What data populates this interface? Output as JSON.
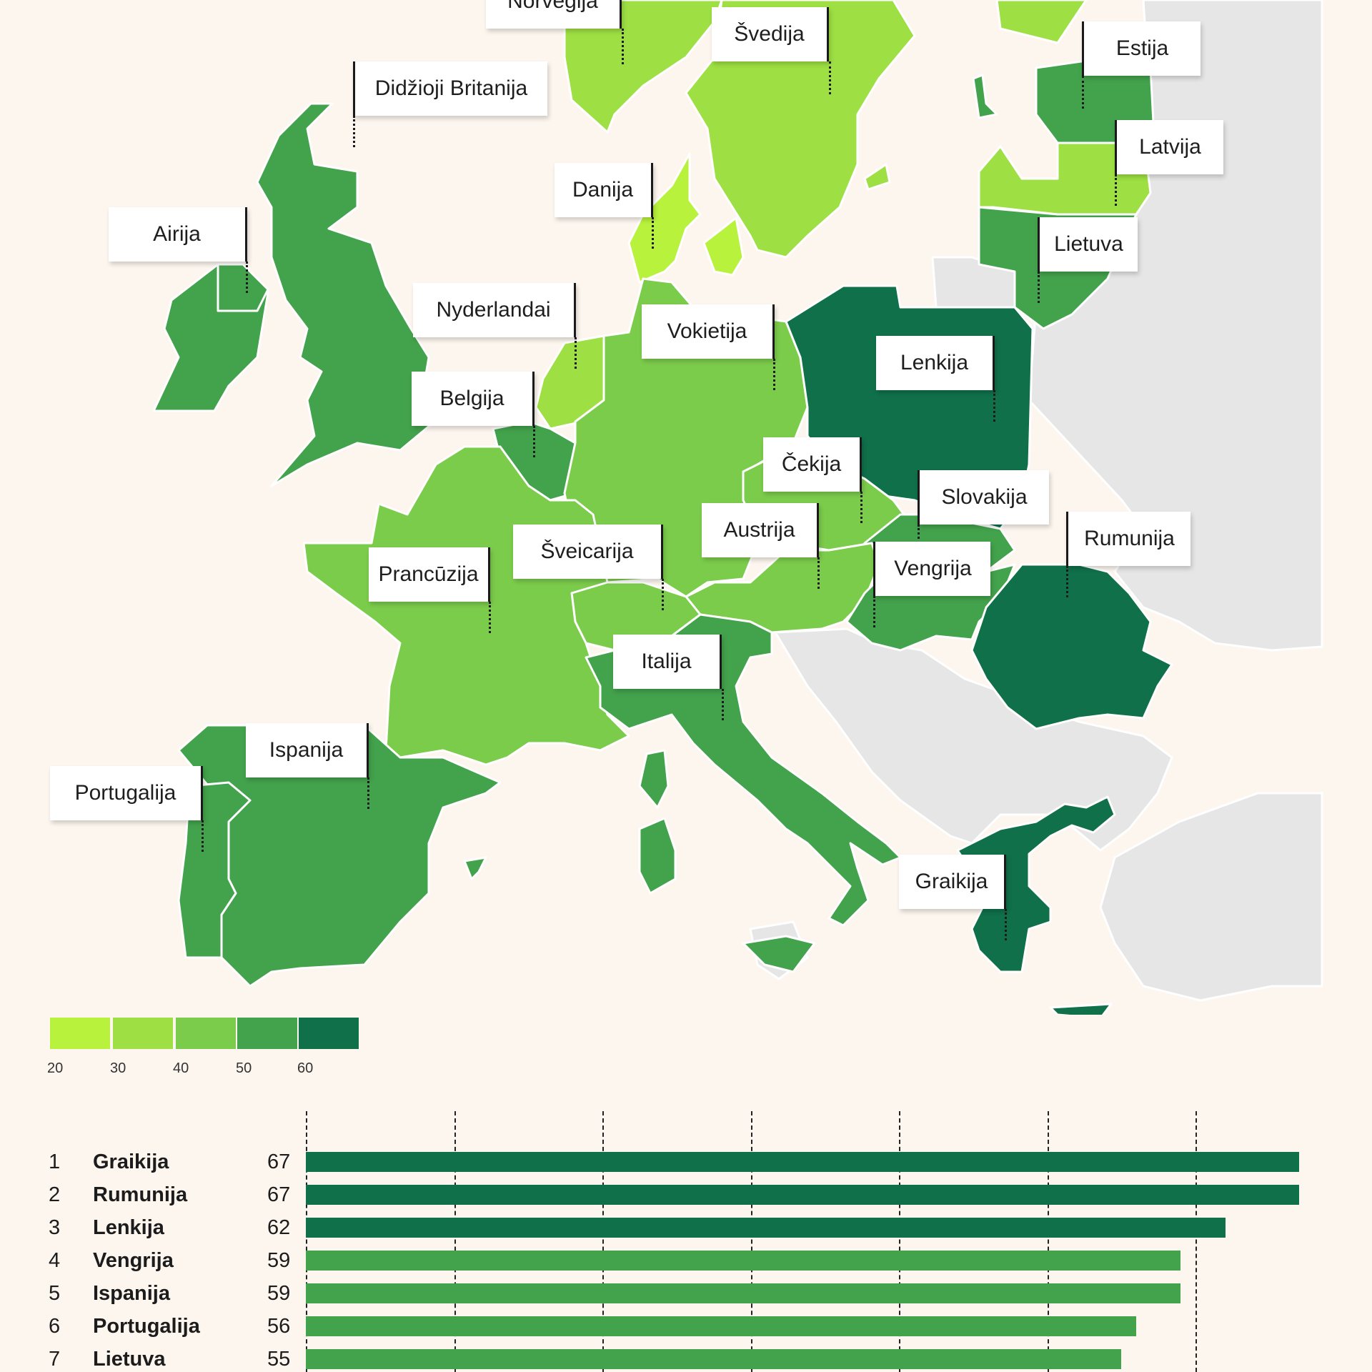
{
  "colors": {
    "c20": "#b8f23c",
    "c30": "#9ee043",
    "c40": "#7ccc4c",
    "c50": "#43a24c",
    "c60": "#10704a",
    "neighbor": "#e6e6e6",
    "background": "#fdf6ef"
  },
  "countries": {
    "norvegija": "Norvegija",
    "svedija": "Švedija",
    "estija": "Estija",
    "latvija": "Latvija",
    "lietuva": "Lietuva",
    "didzioji_britanija": "Didžioji Britanija",
    "danija": "Danija",
    "airija": "Airija",
    "nyderlandai": "Nyderlandai",
    "vokietija": "Vokietija",
    "lenkija": "Lenkija",
    "belgija": "Belgija",
    "cekija": "Čekija",
    "slovakija": "Slovakija",
    "austrija": "Austrija",
    "sveicarija": "Šveicarija",
    "rumunija": "Rumunija",
    "prancuzija": "Prancūzija",
    "vengrija": "Vengrija",
    "italija": "Italija",
    "ispanija": "Ispanija",
    "portugalija": "Portugalija",
    "graikija": "Graikija"
  },
  "legend": {
    "ticks": [
      "20",
      "30",
      "40",
      "50",
      "60"
    ],
    "colors": [
      "#b8f23c",
      "#9ee043",
      "#7ccc4c",
      "#43a24c",
      "#10704a"
    ]
  },
  "chart_data": {
    "type": "bar",
    "orientation": "horizontal",
    "rows": [
      {
        "rank": "1",
        "name": "Graikija",
        "value": 67,
        "color": "#10704a"
      },
      {
        "rank": "2",
        "name": "Rumunija",
        "value": 67,
        "color": "#10704a"
      },
      {
        "rank": "3",
        "name": "Lenkija",
        "value": 62,
        "color": "#10704a"
      },
      {
        "rank": "4",
        "name": "Vengrija",
        "value": 59,
        "color": "#43a24c"
      },
      {
        "rank": "5",
        "name": "Ispanija",
        "value": 59,
        "color": "#43a24c"
      },
      {
        "rank": "6",
        "name": "Portugalija",
        "value": 56,
        "color": "#43a24c"
      },
      {
        "rank": "7",
        "name": "Lietuva",
        "value": 55,
        "color": "#43a24c"
      }
    ],
    "xlim": [
      0,
      67
    ],
    "gridlines": [
      0,
      10,
      20,
      30,
      40,
      50,
      60
    ]
  }
}
